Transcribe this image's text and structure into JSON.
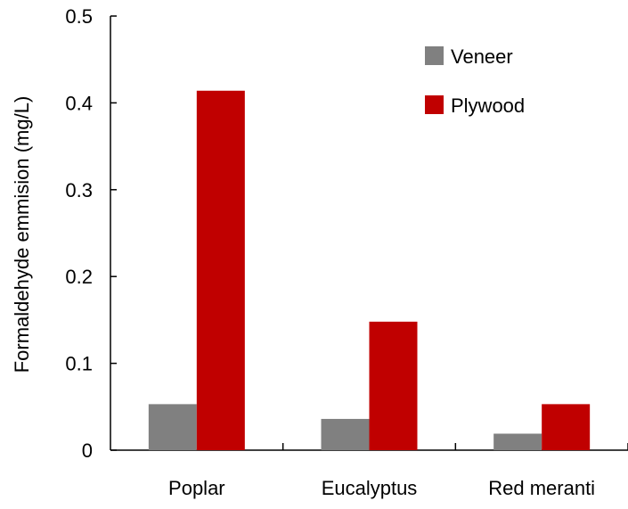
{
  "chart_data": {
    "type": "bar",
    "title": "",
    "xlabel": "",
    "ylabel": "Formaldehyde emmision (mg/L)",
    "ylim": [
      0,
      0.5
    ],
    "yticks": [
      0,
      0.1,
      0.2,
      0.3,
      0.4,
      0.5
    ],
    "ytick_labels": [
      "0",
      "0.1",
      "0.2",
      "0.3",
      "0.4",
      "0.5"
    ],
    "categories": [
      "Poplar",
      "Eucalyptus",
      "Red meranti"
    ],
    "series": [
      {
        "name": "Veneer",
        "color": "#808080",
        "values": [
          0.053,
          0.036,
          0.019
        ]
      },
      {
        "name": "Plywood",
        "color": "#c00000",
        "values": [
          0.414,
          0.148,
          0.053
        ]
      }
    ],
    "legend_position": "top-right",
    "grid": false
  }
}
